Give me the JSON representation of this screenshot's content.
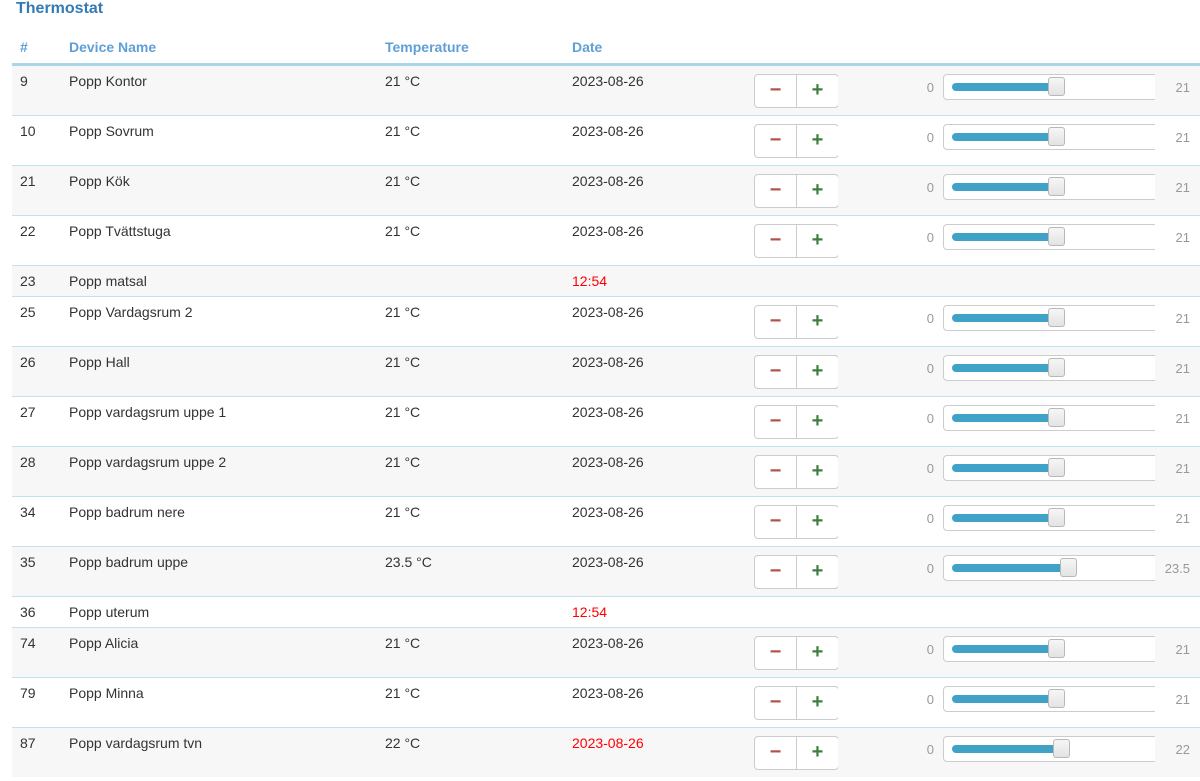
{
  "page": {
    "title": "Thermostat"
  },
  "colors": {
    "title_blue": "#337ab7",
    "header_blue": "#5f9fd8",
    "row_border_blue": "#bfe3f2",
    "header_border_blue": "#aad6e8",
    "stripe_gray": "#f7f7f7",
    "slider_track_blue": "#41a2c7",
    "minus_red": "#b2504b",
    "plus_green": "#3e7e3e",
    "muted_gray": "#999999",
    "alert_red": "#ff0000"
  },
  "table": {
    "headers": {
      "id": "#",
      "device": "Device Name",
      "temperature": "Temperature",
      "date": "Date"
    },
    "controls": {
      "decrease_label": "−",
      "increase_label": "+"
    },
    "slider": {
      "min_label": "0",
      "min": 0,
      "max": 40
    },
    "rows": [
      {
        "id": "9",
        "device": "Popp Kontor",
        "temperature": "21 °C",
        "date": "2023-08-26",
        "date_alert": false,
        "has_controls": true,
        "value": 21,
        "value_label": "21"
      },
      {
        "id": "10",
        "device": "Popp Sovrum",
        "temperature": "21 °C",
        "date": "2023-08-26",
        "date_alert": false,
        "has_controls": true,
        "value": 21,
        "value_label": "21"
      },
      {
        "id": "21",
        "device": "Popp Kök",
        "temperature": "21 °C",
        "date": "2023-08-26",
        "date_alert": false,
        "has_controls": true,
        "value": 21,
        "value_label": "21"
      },
      {
        "id": "22",
        "device": "Popp Tvättstuga",
        "temperature": "21 °C",
        "date": "2023-08-26",
        "date_alert": false,
        "has_controls": true,
        "value": 21,
        "value_label": "21"
      },
      {
        "id": "23",
        "device": "Popp matsal",
        "temperature": "",
        "date": "12:54",
        "date_alert": true,
        "has_controls": false,
        "value": null,
        "value_label": ""
      },
      {
        "id": "25",
        "device": "Popp Vardagsrum 2",
        "temperature": "21 °C",
        "date": "2023-08-26",
        "date_alert": false,
        "has_controls": true,
        "value": 21,
        "value_label": "21"
      },
      {
        "id": "26",
        "device": "Popp Hall",
        "temperature": "21 °C",
        "date": "2023-08-26",
        "date_alert": false,
        "has_controls": true,
        "value": 21,
        "value_label": "21"
      },
      {
        "id": "27",
        "device": "Popp vardagsrum uppe 1",
        "temperature": "21 °C",
        "date": "2023-08-26",
        "date_alert": false,
        "has_controls": true,
        "value": 21,
        "value_label": "21"
      },
      {
        "id": "28",
        "device": "Popp vardagsrum uppe 2",
        "temperature": "21 °C",
        "date": "2023-08-26",
        "date_alert": false,
        "has_controls": true,
        "value": 21,
        "value_label": "21"
      },
      {
        "id": "34",
        "device": "Popp badrum nere",
        "temperature": "21 °C",
        "date": "2023-08-26",
        "date_alert": false,
        "has_controls": true,
        "value": 21,
        "value_label": "21"
      },
      {
        "id": "35",
        "device": "Popp badrum uppe",
        "temperature": "23.5 °C",
        "date": "2023-08-26",
        "date_alert": false,
        "has_controls": true,
        "value": 23.5,
        "value_label": "23.5"
      },
      {
        "id": "36",
        "device": "Popp uterum",
        "temperature": "",
        "date": "12:54",
        "date_alert": true,
        "has_controls": false,
        "value": null,
        "value_label": ""
      },
      {
        "id": "74",
        "device": "Popp Alicia",
        "temperature": "21 °C",
        "date": "2023-08-26",
        "date_alert": false,
        "has_controls": true,
        "value": 21,
        "value_label": "21"
      },
      {
        "id": "79",
        "device": "Popp Minna",
        "temperature": "21 °C",
        "date": "2023-08-26",
        "date_alert": false,
        "has_controls": true,
        "value": 21,
        "value_label": "21"
      },
      {
        "id": "87",
        "device": "Popp vardagsrum tvn",
        "temperature": "22 °C",
        "date": "2023-08-26",
        "date_alert": true,
        "has_controls": true,
        "value": 22,
        "value_label": "22"
      }
    ]
  }
}
